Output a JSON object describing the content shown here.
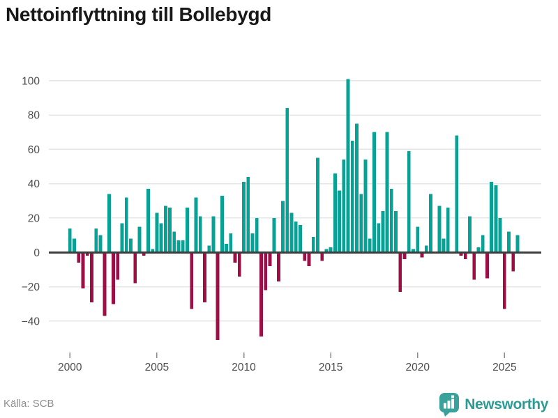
{
  "header": {
    "title": "Nettoinflyttning till Bollebygd"
  },
  "footer": {
    "source": "Källa: SCB",
    "brand": "Newsworthy"
  },
  "colors": {
    "positive": "#07a295",
    "negative": "#9d0f44",
    "grid": "#e6e6e6",
    "zero_line": "#3d3d3d",
    "axis_text": "#4d4d4d",
    "tick_mark": "#8a8a8a",
    "brand_teal": "#2d9a94",
    "source_text": "#8f8f8f",
    "background": "#ffffff"
  },
  "chart_data": {
    "type": "bar",
    "title": "Nettoinflyttning till Bollebygd",
    "frequency": "quarterly",
    "x_start": {
      "year": 2000,
      "quarter": 1
    },
    "x_tick_years": [
      2000,
      2005,
      2010,
      2015,
      2020,
      2025
    ],
    "y_ticks": [
      100,
      80,
      60,
      40,
      20,
      0,
      -20,
      -40
    ],
    "ylim": [
      -60,
      110
    ],
    "grid": true,
    "legend": false,
    "values": [
      14,
      8,
      -6,
      -21,
      -2,
      -29,
      14,
      10,
      -37,
      34,
      -30,
      -16,
      17,
      32,
      8,
      -18,
      15,
      -2,
      37,
      2,
      23,
      17,
      27,
      26,
      12,
      7,
      7,
      26,
      -33,
      32,
      21,
      -29,
      4,
      21,
      -51,
      33,
      5,
      11,
      -6,
      -14,
      41,
      44,
      11,
      20,
      -49,
      -22,
      -8,
      20,
      -17,
      30,
      84,
      23,
      18,
      16,
      -5,
      -8,
      9,
      55,
      -5,
      2,
      3,
      46,
      36,
      54,
      101,
      65,
      75,
      34,
      54,
      8,
      70,
      17,
      24,
      70,
      37,
      24,
      -23,
      -4,
      59,
      2,
      15,
      -3,
      4,
      34,
      0,
      27,
      8,
      26,
      0,
      68,
      -2,
      -4,
      21,
      -16,
      3,
      10,
      -15,
      41,
      39,
      20,
      -33,
      12,
      -11,
      10
    ]
  }
}
